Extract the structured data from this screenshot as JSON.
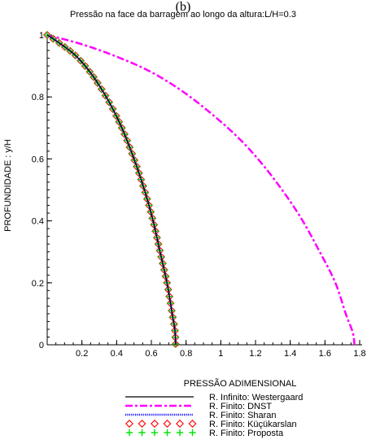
{
  "panel_label": "(b)",
  "chart_data": {
    "type": "line",
    "title": "Pressão na face da barragem ao longo da altura:L/H=0.3",
    "xlabel": "PRESSÃO ADIMENSIONAL",
    "ylabel": "PROFUNDIDADE : y/H",
    "xlim": [
      0,
      1.8
    ],
    "ylim": [
      0,
      1
    ],
    "x_ticks": [
      "0.2",
      "0.4",
      "0.6",
      "0.8",
      "1",
      "1.2",
      "1.4",
      "1.6",
      "1.8"
    ],
    "y_ticks": [
      "0",
      "0.2",
      "0.4",
      "0.6",
      "0.8",
      "1"
    ],
    "grid": false,
    "legend_position": "bottom",
    "series": [
      {
        "name": "R. Infinito: Westergaard",
        "style": "solid",
        "color": "#000000",
        "x": [
          0.0,
          0.08,
          0.17,
          0.26,
          0.35,
          0.43,
          0.5,
          0.56,
          0.61,
          0.65,
          0.69,
          0.72,
          0.735,
          0.74
        ],
        "y": [
          1.0,
          0.97,
          0.93,
          0.87,
          0.79,
          0.7,
          0.6,
          0.5,
          0.4,
          0.3,
          0.2,
          0.1,
          0.05,
          0.0
        ]
      },
      {
        "name": "R. Finito: DNST",
        "style": "dashdot",
        "color": "#ff00ff",
        "x": [
          0.0,
          0.2,
          0.4,
          0.6,
          0.8,
          1.0,
          1.15,
          1.3,
          1.45,
          1.57,
          1.66,
          1.72,
          1.76,
          1.77
        ],
        "y": [
          1.0,
          0.97,
          0.93,
          0.88,
          0.81,
          0.72,
          0.64,
          0.54,
          0.42,
          0.3,
          0.2,
          0.1,
          0.04,
          0.0
        ]
      },
      {
        "name": "R. Finito: Sharan",
        "style": "dotted",
        "color": "#2020ff",
        "x": [
          0.0,
          0.08,
          0.17,
          0.26,
          0.35,
          0.43,
          0.5,
          0.56,
          0.61,
          0.65,
          0.69,
          0.72,
          0.735,
          0.74
        ],
        "y": [
          1.0,
          0.97,
          0.93,
          0.87,
          0.79,
          0.7,
          0.6,
          0.5,
          0.4,
          0.3,
          0.2,
          0.1,
          0.05,
          0.0
        ]
      },
      {
        "name": "R. Finito: Küçükarslan",
        "style": "diamond",
        "color": "#ff0000",
        "x": [
          0.0,
          0.08,
          0.17,
          0.26,
          0.35,
          0.43,
          0.5,
          0.56,
          0.61,
          0.65,
          0.69,
          0.72,
          0.735,
          0.74
        ],
        "y": [
          1.0,
          0.97,
          0.93,
          0.87,
          0.79,
          0.7,
          0.6,
          0.5,
          0.4,
          0.3,
          0.2,
          0.1,
          0.05,
          0.0
        ]
      },
      {
        "name": "R. Finito: Proposta",
        "style": "cross",
        "color": "#00e000",
        "x": [
          0.0,
          0.08,
          0.17,
          0.26,
          0.35,
          0.43,
          0.5,
          0.56,
          0.61,
          0.65,
          0.69,
          0.72,
          0.735,
          0.74
        ],
        "y": [
          1.0,
          0.97,
          0.93,
          0.87,
          0.79,
          0.7,
          0.6,
          0.5,
          0.4,
          0.3,
          0.2,
          0.1,
          0.05,
          0.0
        ]
      }
    ]
  }
}
